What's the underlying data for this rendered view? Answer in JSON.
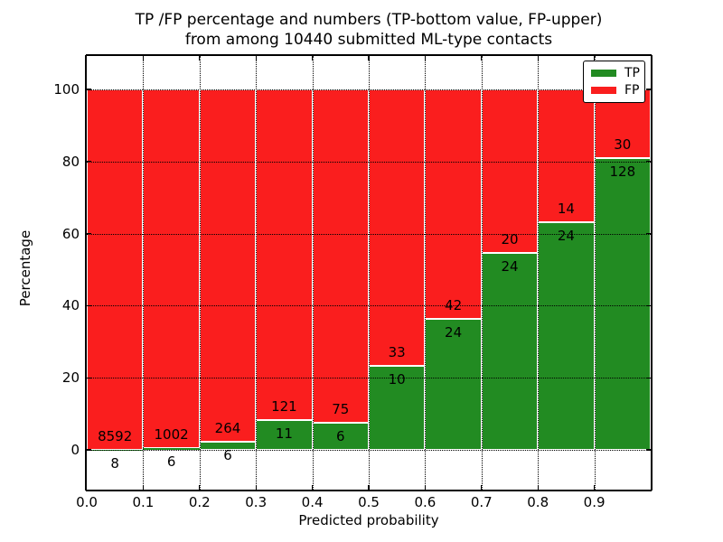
{
  "title": {
    "line1": "TP /FP percentage and numbers (TP-bottom value, FP-upper)",
    "line2": "from among 10440 submitted ML-type contacts"
  },
  "axes": {
    "xlabel": "Predicted probability",
    "ylabel": "Percentage",
    "x_tick_labels": [
      "0.0",
      "0.1",
      "0.2",
      "0.3",
      "0.4",
      "0.5",
      "0.6",
      "0.7",
      "0.8",
      "0.9"
    ],
    "y_tick_labels": [
      "0",
      "20",
      "40",
      "60",
      "80",
      "100"
    ]
  },
  "legend": {
    "items": [
      {
        "label": "TP",
        "color": "#228B22"
      },
      {
        "label": "FP",
        "color": "#FA1E1E"
      }
    ]
  },
  "colors": {
    "tp_green": "#228B22",
    "fp_red": "#FA1E1E",
    "bar_edge": "#ffffff",
    "grid": "#000000"
  },
  "chart_data": {
    "type": "bar",
    "stacked": true,
    "normalized_to_percent": true,
    "title": "TP /FP percentage and numbers (TP-bottom value, FP-upper) from among 10440 submitted ML-type contacts",
    "xlabel": "Predicted probability",
    "ylabel": "Percentage",
    "total_contacts": 10440,
    "bin_edges": [
      0.0,
      0.1,
      0.2,
      0.3,
      0.4,
      0.5,
      0.6,
      0.7,
      0.8,
      0.9,
      1.0
    ],
    "categories": [
      "0.0-0.1",
      "0.1-0.2",
      "0.2-0.3",
      "0.3-0.4",
      "0.4-0.5",
      "0.5-0.6",
      "0.6-0.7",
      "0.7-0.8",
      "0.8-0.9",
      "0.9-1.0"
    ],
    "series": [
      {
        "name": "TP",
        "color": "#228B22",
        "counts": [
          8,
          6,
          6,
          11,
          6,
          10,
          24,
          24,
          24,
          128
        ]
      },
      {
        "name": "FP",
        "color": "#FA1E1E",
        "counts": [
          8592,
          1002,
          264,
          121,
          75,
          33,
          42,
          20,
          14,
          30
        ]
      }
    ],
    "tp_percent": [
      0.09,
      0.6,
      2.22,
      8.33,
      7.41,
      23.26,
      36.36,
      54.55,
      63.16,
      81.01
    ],
    "xlim": [
      0.0,
      1.0
    ],
    "yticks": [
      0,
      20,
      40,
      60,
      80,
      100
    ],
    "grid": "dotted",
    "legend_position": "upper right"
  }
}
